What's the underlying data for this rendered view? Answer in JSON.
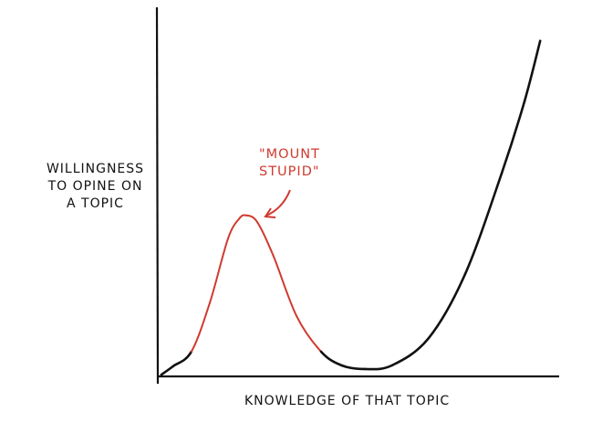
{
  "chart_data": {
    "type": "line",
    "title": "",
    "xlabel": "KNOWLEDGE OF THAT TOPIC",
    "ylabel": "WILLINGNESS\nTO OPINE ON\nA TOPIC",
    "xlim": [
      0,
      100
    ],
    "ylim": [
      0,
      110
    ],
    "grid": false,
    "ticks": false,
    "colors": {
      "line": "#111111",
      "highlight": "#d03a2f",
      "axes": "#111111"
    },
    "series": [
      {
        "x": [
          1.1,
          4,
          8.6,
          13.2,
          17.7,
          20.5,
          22.3,
          25,
          29,
          34.8,
          40.9,
          46,
          51.8,
          58.6,
          67.7,
          76.8,
          85.9,
          91.6,
          95.5
        ],
        "y": [
          0.5,
          3,
          7.4,
          22,
          41,
          47,
          48,
          46,
          36,
          18,
          7.4,
          3.3,
          2.2,
          3.3,
          11.4,
          30.5,
          60.5,
          82,
          100
        ]
      }
    ],
    "highlight_range_x": [
      8.6,
      40.9
    ],
    "annotations": [
      {
        "text": "\"MOUNT\nSTUPID\"",
        "target_x": 22.3,
        "target_y": 48
      }
    ]
  }
}
